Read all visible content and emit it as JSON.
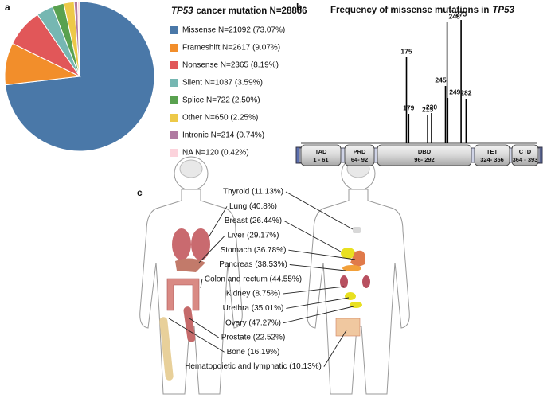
{
  "panels": [
    "a",
    "b",
    "c"
  ],
  "chart_data": [
    {
      "type": "pie",
      "title_gene": "TP53",
      "title": "cancer mutation N=28866",
      "categories": [
        "Missense N=21092 (73.07%)",
        "Frameshift N=2617 (9.07%)",
        "Nonsense N=2365 (8.19%)",
        "Silent N=1037 (3.59%)",
        "Splice N=722 (2.50%)",
        "Other N=650 (2.25%)",
        "Intronic N=214 (0.74%)",
        "NA N=120 (0.42%)"
      ],
      "values": [
        73.07,
        9.07,
        8.19,
        3.59,
        2.5,
        2.25,
        0.74,
        0.42
      ],
      "colors": [
        "#4a78a8",
        "#f28e2b",
        "#e15759",
        "#76b7b2",
        "#59a14f",
        "#edc948",
        "#b07aa1",
        "#fcd3dc"
      ]
    },
    {
      "type": "bar",
      "title": "Frequency of missense mutations in",
      "title_gene": "TP53",
      "x": [
        175,
        179,
        213,
        220,
        245,
        248,
        249,
        273,
        282
      ],
      "values": [
        108,
        37,
        35,
        38,
        72,
        152,
        57,
        155,
        56
      ],
      "color": "#000000",
      "xlim": [
        0,
        400
      ],
      "ylim": [
        0,
        160
      ],
      "domains": [
        {
          "name": "TAD",
          "range": "1 - 61"
        },
        {
          "name": "PRD",
          "range": "64- 92"
        },
        {
          "name": "DBD",
          "range": "96- 292"
        },
        {
          "name": "TET",
          "range": "324- 356"
        },
        {
          "name": "CTD",
          "range": "364 - 393"
        }
      ]
    }
  ],
  "body_map": {
    "labels": [
      "Thyroid (11.13%)",
      "Lung (40.8%)",
      "Breast (26.44%)",
      "Liver (29.17%)",
      "Stomach (36.78%)",
      "Pancreas (38.53%)",
      "Colon and rectum (44.55%)",
      "Kidney (8.75%)",
      "Urethra (35.01%)",
      "Ovary (47.27%)",
      "Prostate (22.52%)",
      "Bone (16.19%)",
      "Hematopoietic and lymphatic (10.13%)"
    ]
  }
}
